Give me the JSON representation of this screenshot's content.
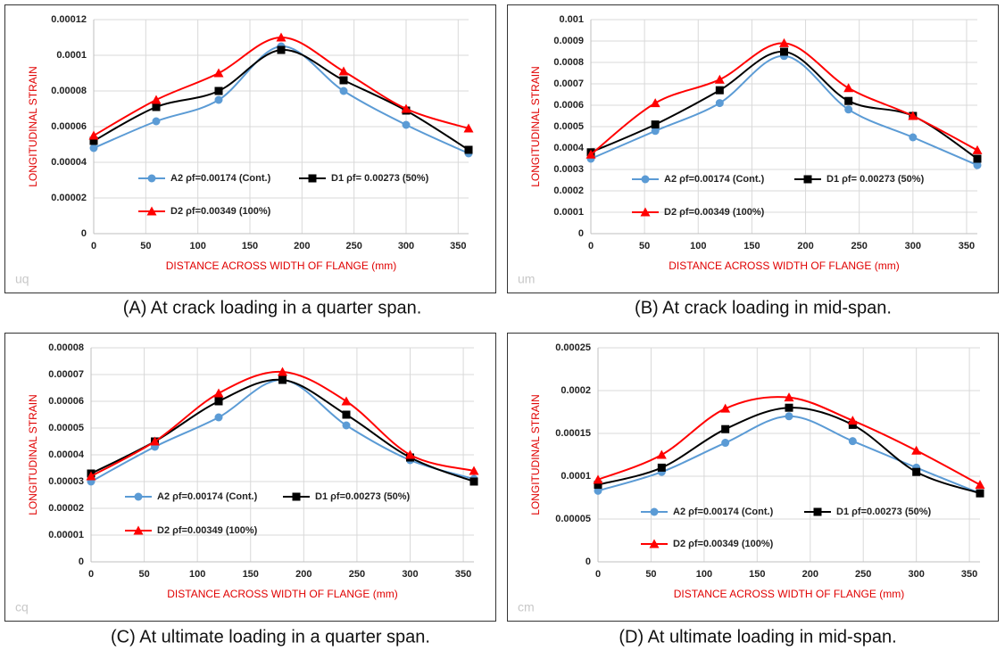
{
  "chart_data": [
    {
      "type": "line",
      "caption": "(A) At crack loading in a quarter span.",
      "watermark": "uq",
      "x_label": "DISTANCE ACROSS WIDTH OF FLANGE (mm)",
      "y_label": "LONGITUDINAL STRAIN",
      "x": [
        0,
        60,
        120,
        180,
        240,
        300,
        360
      ],
      "xlim": [
        0,
        360
      ],
      "xticks": [
        0,
        50,
        100,
        150,
        200,
        250,
        300,
        350
      ],
      "ylim": [
        0,
        0.00012
      ],
      "yticks": [
        0,
        2e-05,
        4e-05,
        6e-05,
        8e-05,
        0.0001,
        0.00012
      ],
      "grid": true,
      "series": [
        {
          "name": "A2 ρf=0.00174 (Cont.)",
          "color": "#5b9bd5",
          "marker": "circle",
          "values": [
            4.8e-05,
            6.3e-05,
            7.5e-05,
            0.000105,
            8e-05,
            6.1e-05,
            4.5e-05
          ]
        },
        {
          "name": "D1 ρf= 0.00273 (50%)",
          "color": "#000000",
          "marker": "square",
          "values": [
            5.2e-05,
            7.1e-05,
            8e-05,
            0.000103,
            8.6e-05,
            6.9e-05,
            4.7e-05
          ]
        },
        {
          "name": "D2 ρf=0.00349 (100%)",
          "color": "#ff0000",
          "marker": "triangle",
          "values": [
            5.5e-05,
            7.5e-05,
            9e-05,
            0.00011,
            9.1e-05,
            7e-05,
            5.9e-05
          ]
        }
      ]
    },
    {
      "type": "line",
      "caption": "(B)  At crack loading in mid-span.",
      "watermark": "um",
      "x_label": "DISTANCE ACROSS WIDTH OF FLANGE (mm)",
      "y_label": "LONGITUDINAL STRAIN",
      "x": [
        0,
        60,
        120,
        180,
        240,
        300,
        360
      ],
      "xlim": [
        0,
        360
      ],
      "xticks": [
        0,
        50,
        100,
        150,
        200,
        250,
        300,
        350
      ],
      "ylim": [
        0,
        0.001
      ],
      "yticks": [
        0,
        0.0001,
        0.0002,
        0.0003,
        0.0004,
        0.0005,
        0.0006,
        0.0007,
        0.0008,
        0.0009,
        0.001
      ],
      "grid": true,
      "series": [
        {
          "name": "A2 ρf=0.00174 (Cont.)",
          "color": "#5b9bd5",
          "marker": "circle",
          "values": [
            0.00035,
            0.00048,
            0.00061,
            0.00083,
            0.00058,
            0.00045,
            0.00032
          ]
        },
        {
          "name": "D1 ρf= 0.00273 (50%)",
          "color": "#000000",
          "marker": "square",
          "values": [
            0.00038,
            0.00051,
            0.00067,
            0.00085,
            0.00062,
            0.00055,
            0.00035
          ]
        },
        {
          "name": "D2 ρf=0.00349 (100%)",
          "color": "#ff0000",
          "marker": "triangle",
          "values": [
            0.00037,
            0.00061,
            0.00072,
            0.00089,
            0.00068,
            0.00055,
            0.00039
          ]
        }
      ]
    },
    {
      "type": "line",
      "caption": "(C) At ultimate loading in a quarter span.",
      "watermark": "cq",
      "x_label": "DISTANCE ACROSS WIDTH OF FLANGE (mm)",
      "y_label": "LONGITUDINAL STRAIN",
      "x": [
        0,
        60,
        120,
        180,
        240,
        300,
        360
      ],
      "xlim": [
        0,
        360
      ],
      "xticks": [
        0,
        50,
        100,
        150,
        200,
        250,
        300,
        350
      ],
      "ylim": [
        0,
        8e-05
      ],
      "yticks": [
        0,
        1e-05,
        2e-05,
        3e-05,
        4e-05,
        5e-05,
        6e-05,
        7e-05,
        8e-05
      ],
      "grid": true,
      "series": [
        {
          "name": "A2 ρf=0.00174 (Cont.)",
          "color": "#5b9bd5",
          "marker": "circle",
          "values": [
            3e-05,
            4.3e-05,
            5.4e-05,
            6.8e-05,
            5.1e-05,
            3.8e-05,
            3.1e-05
          ]
        },
        {
          "name": "D1 ρf=0.00273 (50%)",
          "color": "#000000",
          "marker": "square",
          "values": [
            3.3e-05,
            4.5e-05,
            6e-05,
            6.8e-05,
            5.5e-05,
            3.9e-05,
            3e-05
          ]
        },
        {
          "name": "D2 ρf=0.00349 (100%)",
          "color": "#ff0000",
          "marker": "triangle",
          "values": [
            3.2e-05,
            4.5e-05,
            6.3e-05,
            7.1e-05,
            6e-05,
            4e-05,
            3.4e-05
          ]
        }
      ]
    },
    {
      "type": "line",
      "caption": "(D) At ultimate loading in mid-span.",
      "watermark": "cm",
      "x_label": "DISTANCE ACROSS WIDTH OF FLANGE (mm)",
      "y_label": "LONGITUDINAL STRAIN",
      "x": [
        0,
        60,
        120,
        180,
        240,
        300,
        360
      ],
      "xlim": [
        0,
        360
      ],
      "xticks": [
        0,
        50,
        100,
        150,
        200,
        250,
        300,
        350
      ],
      "ylim": [
        0,
        0.00025
      ],
      "yticks": [
        0,
        5e-05,
        0.0001,
        0.00015,
        0.0002,
        0.00025
      ],
      "grid": true,
      "series": [
        {
          "name": "A2 ρf=0.00174 (Cont.)",
          "color": "#5b9bd5",
          "marker": "circle",
          "values": [
            8.3e-05,
            0.000105,
            0.000139,
            0.00017,
            0.000141,
            0.00011,
            8e-05
          ]
        },
        {
          "name": "D1 ρf=0.00273 (50%)",
          "color": "#000000",
          "marker": "square",
          "values": [
            9e-05,
            0.00011,
            0.000155,
            0.00018,
            0.00016,
            0.000105,
            8e-05
          ]
        },
        {
          "name": "D2 ρf=0.00349 (100%)",
          "color": "#ff0000",
          "marker": "triangle",
          "values": [
            9.6e-05,
            0.000125,
            0.000179,
            0.000192,
            0.000165,
            0.00013,
            9e-05
          ]
        }
      ]
    }
  ]
}
